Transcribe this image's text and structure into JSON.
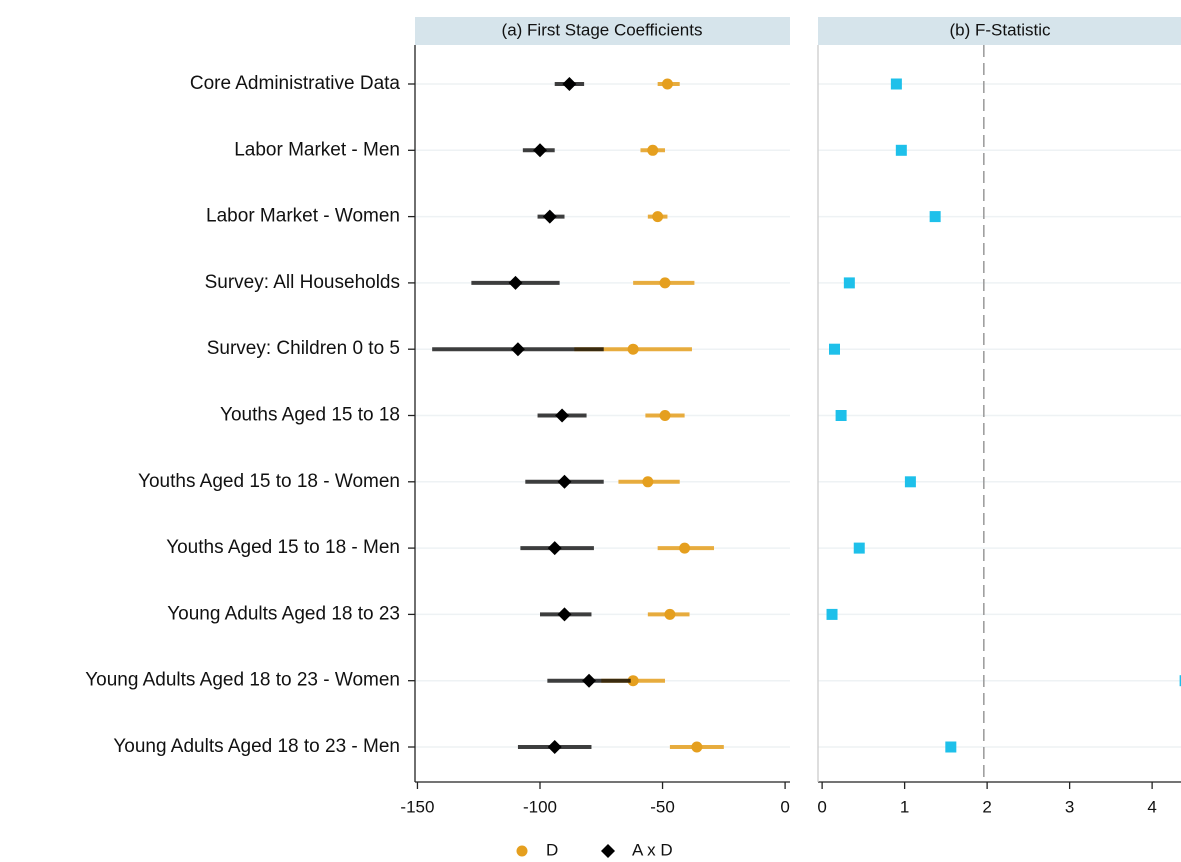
{
  "chart_data": [
    {
      "type": "dot-whisker",
      "title": "(a) First Stage Coefficients",
      "categories": [
        "Core Administrative Data",
        "Labor Market - Men",
        "Labor Market - Women",
        "Survey: All Households",
        "Survey: Children 0 to 5",
        "Youths Aged 15 to 18",
        "Youths Aged 15 to 18 - Women",
        "Youths Aged 15 to 18 - Men",
        "Young Adults Aged 18 to 23",
        "Young Adults Aged 18 to 23 - Women",
        "Young Adults Aged 18 to 23 - Men"
      ],
      "series": [
        {
          "name": "D",
          "color": "#e59f1e",
          "marker": "circle",
          "values": [
            -48,
            -54,
            -52,
            -49,
            -62,
            -49,
            -56,
            -41,
            -47,
            -62,
            -36
          ],
          "lower": [
            -52,
            -59,
            -56,
            -62,
            -86,
            -57,
            -68,
            -52,
            -56,
            -75,
            -47
          ],
          "upper": [
            -43,
            -49,
            -48,
            -37,
            -38,
            -41,
            -43,
            -29,
            -39,
            -49,
            -25
          ]
        },
        {
          "name": "A x D",
          "color": "#000000",
          "marker": "diamond",
          "values": [
            -88,
            -100,
            -96,
            -110,
            -109,
            -91,
            -90,
            -94,
            -90,
            -80,
            -94
          ],
          "lower": [
            -94,
            -107,
            -101,
            -128,
            -144,
            -101,
            -106,
            -108,
            -100,
            -97,
            -109
          ],
          "upper": [
            -82,
            -94,
            -90,
            -92,
            -74,
            -81,
            -74,
            -78,
            -79,
            -63,
            -79
          ]
        }
      ],
      "xlim": [
        -151,
        2
      ],
      "xticks": [
        -150,
        -100,
        -50,
        0
      ]
    },
    {
      "type": "dot",
      "title": "(b) F-Statistic",
      "series": [
        {
          "name": "F",
          "color": "#1ec0ea",
          "values": [
            0.9,
            0.96,
            1.37,
            0.33,
            0.15,
            0.23,
            1.07,
            0.45,
            0.12,
            4.4,
            1.56
          ]
        }
      ],
      "reference_line": 1.96,
      "xlim": [
        -0.05,
        4.35
      ],
      "xticks": [
        0,
        1,
        2,
        3,
        4
      ]
    }
  ]
}
